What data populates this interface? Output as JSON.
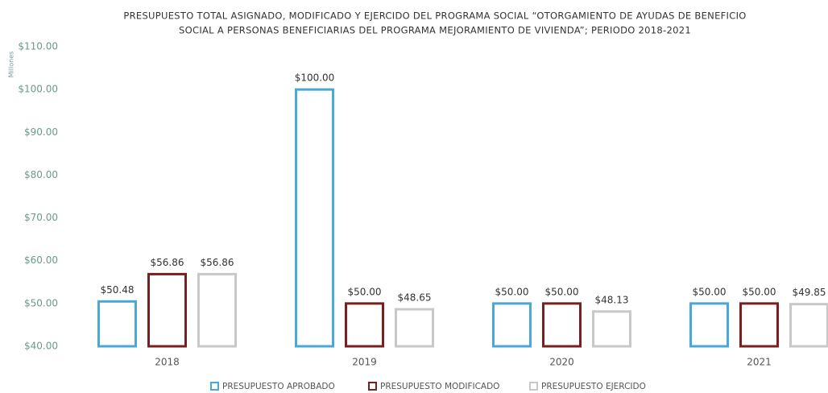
{
  "chart_data": {
    "type": "bar",
    "title": [
      "PRESUPUESTO TOTAL ASIGNADO, MODIFICADO Y EJERCIDO DEL PROGRAMA SOCIAL “OTORGAMIENTO DE AYUDAS DE BENEFICIO",
      "SOCIAL A PERSONAS BENEFICIARIAS DEL PROGRAMA MEJORAMIENTO DE VIVIENDA”; PERIODO 2018-2021"
    ],
    "y_label": "Millones",
    "categories": [
      "2018",
      "2019",
      "2020",
      "2021"
    ],
    "series": [
      {
        "name": "PRESUPUESTO APROBADO",
        "color": "#4aa8d8",
        "values": [
          50.48,
          100,
          50,
          50
        ],
        "value_labels": [
          "$50.48",
          "$100.00",
          "$50.00",
          "$50.00"
        ]
      },
      {
        "name": "PRESUPUESTO MODIFICADO",
        "color": "#7a1f1f",
        "values": [
          56.86,
          50,
          50,
          50
        ],
        "value_labels": [
          "$56.86",
          "$50.00",
          "$50.00",
          "$50.00"
        ]
      },
      {
        "name": "PRESUPUESTO EJERCIDO",
        "color": "#c8c8c8",
        "values": [
          56.86,
          48.65,
          48.13,
          49.85
        ],
        "value_labels": [
          "$56.86",
          "$48.65",
          "$48.13",
          "$49.85"
        ]
      }
    ],
    "ylim": [
      40,
      110
    ],
    "yticks": [
      {
        "value": 40,
        "label": "$40.00"
      },
      {
        "value": 50,
        "label": "$50.00"
      },
      {
        "value": 60,
        "label": "$60.00"
      },
      {
        "value": 70,
        "label": "$70.00"
      },
      {
        "value": 80,
        "label": "$80.00"
      },
      {
        "value": 90,
        "label": "$90.00"
      },
      {
        "value": 100,
        "label": "$100.00"
      },
      {
        "value": 110,
        "label": "$110.00"
      }
    ],
    "grid": false,
    "legend": "bottom"
  }
}
